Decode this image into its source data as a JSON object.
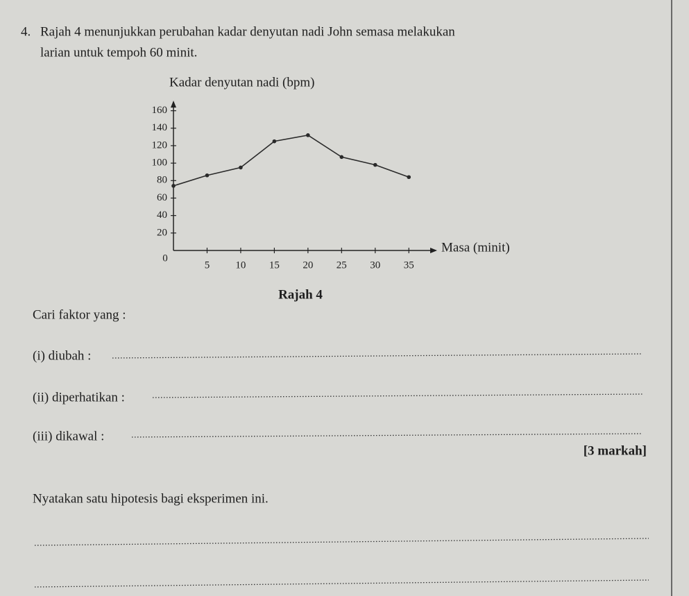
{
  "question": {
    "number": "4.",
    "text_lines": [
      "Rajah 4  menunjukkan perubahan kadar denyutan nadi John semasa melakukan",
      "larian untuk tempoh 60 minit."
    ]
  },
  "chart_data": {
    "type": "line",
    "y_label": "Kadar denyutan nadi (bpm)",
    "x_label": "Masa (minit)",
    "caption": "Rajah 4",
    "x": [
      0,
      5,
      10,
      15,
      20,
      25,
      30,
      35
    ],
    "series": [
      {
        "color": "#2a2a2a",
        "values": [
          74,
          86,
          95,
          125,
          132,
          107,
          98,
          84
        ]
      }
    ],
    "xlim": [
      0,
      39
    ],
    "ylim": [
      0,
      170
    ],
    "xticks": [
      0,
      5,
      10,
      15,
      20,
      25,
      30,
      35
    ],
    "yticks": [
      20,
      40,
      60,
      80,
      100,
      120,
      140,
      160
    ]
  },
  "questions": {
    "prompt": "Cari faktor yang :",
    "items": [
      "(i) diubah :",
      "(ii) diperhatikan :",
      "(iii) dikawal :"
    ],
    "marks": "[3 markah]",
    "hypothesis": "Nyatakan satu hipotesis bagi eksperimen ini."
  }
}
